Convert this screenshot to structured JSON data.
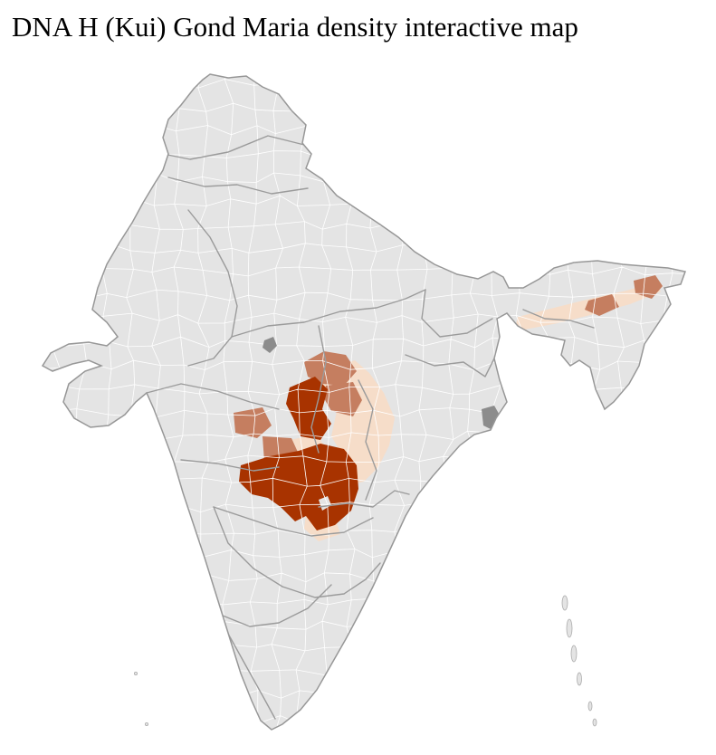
{
  "page": {
    "title": "DNA H (Kui) Gond Maria density interactive map"
  },
  "map": {
    "colors": {
      "background": "#ffffff",
      "base": "#e4e4e4",
      "district_border": "#ffffff",
      "state_border": "#9b9b9b",
      "outline": "#979797",
      "density_high": "#a83300",
      "density_medium": "#c57e60",
      "density_low": "#f6ddc9",
      "metro": "#8c8c8c"
    }
  }
}
